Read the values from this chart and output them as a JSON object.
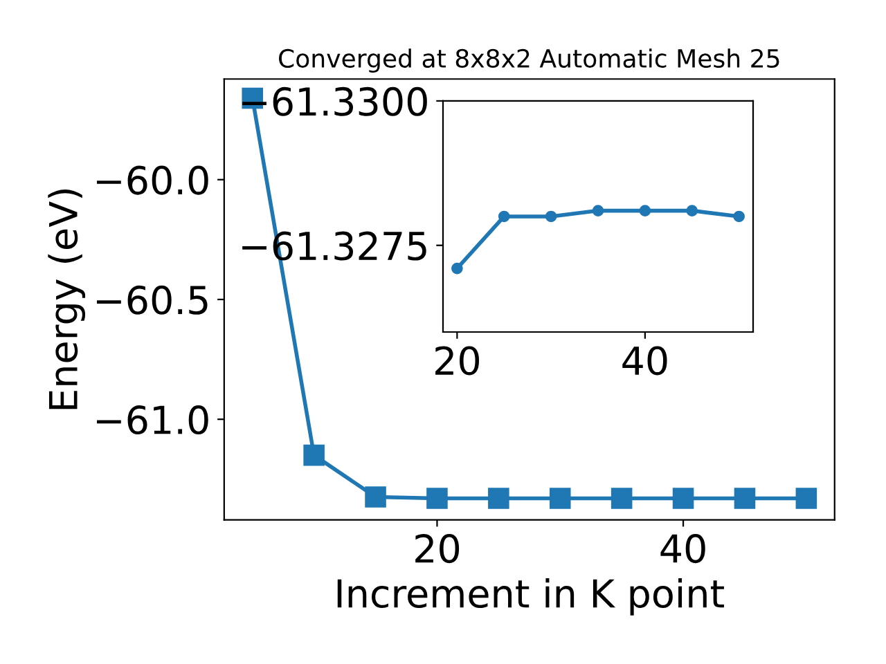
{
  "chart_data": [
    {
      "type": "line",
      "title": "Converged at 8x8x2 Automatic Mesh 25",
      "xlabel": "Increment in K point",
      "ylabel": "Energy (eV)",
      "x": [
        5,
        10,
        15,
        20,
        25,
        30,
        35,
        40,
        45,
        50
      ],
      "series": [
        {
          "color": "#1f77b4",
          "values": [
            -59.66,
            -61.15,
            -61.324,
            -61.33,
            -61.33,
            -61.33,
            -61.33,
            -61.33,
            -61.33,
            -61.33
          ]
        }
      ],
      "xlim": [
        2.7,
        52.3
      ],
      "ylim": [
        -61.42,
        -59.58
      ],
      "xticks": [
        20,
        40
      ],
      "yticks": [
        {
          "value": -61.0,
          "label": "−61.0"
        },
        {
          "value": -60.5,
          "label": "−60.5"
        },
        {
          "value": -60.0,
          "label": "−60.0"
        }
      ],
      "marker": "square",
      "grid": false,
      "legend": false
    },
    {
      "type": "line",
      "x": [
        20,
        25,
        30,
        35,
        40,
        45,
        50
      ],
      "series": [
        {
          "color": "#1f77b4",
          "values": [
            -61.3271,
            -61.328,
            -61.328,
            -61.3281,
            -61.3281,
            -61.3281,
            -61.328
          ]
        }
      ],
      "xlim": [
        18.5,
        51.5
      ],
      "ylim": [
        -61.326,
        -61.33
      ],
      "xticks": [
        20,
        40
      ],
      "yticks": [
        {
          "value": -61.33,
          "label": "−61.3300"
        },
        {
          "value": -61.3275,
          "label": "−61.3275"
        }
      ],
      "marker": "circle",
      "grid": false,
      "legend": false
    }
  ]
}
